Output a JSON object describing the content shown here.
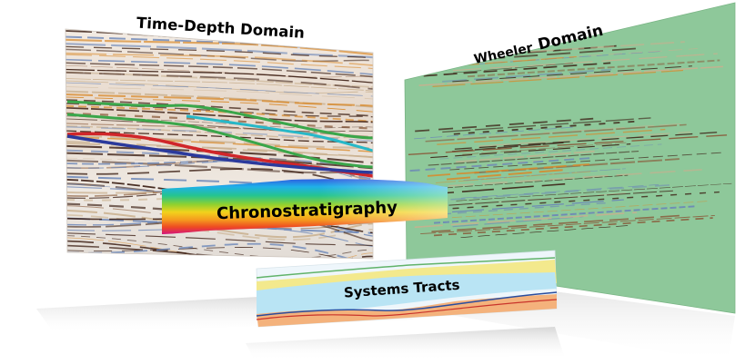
{
  "panels": {
    "time_depth": {
      "title": "Time-Depth Domain"
    },
    "wheeler": {
      "title_part1": "Wheeler",
      "title_part2": "Domain"
    },
    "chronostratigraphy": {
      "label": "Chronostratigraphy"
    },
    "systems_tracts": {
      "label": "Systems Tracts"
    }
  },
  "colors": {
    "wheeler_background": "#8ec89a",
    "horizon_green": "#3aa64a",
    "horizon_cyan": "#27b8c8",
    "horizon_red": "#d0262a",
    "horizon_blue": "#2b3a9c",
    "seismic_dark": "#3a1d12",
    "seismic_warm": "#d98a2b",
    "seismic_cool": "#6b86b8"
  }
}
